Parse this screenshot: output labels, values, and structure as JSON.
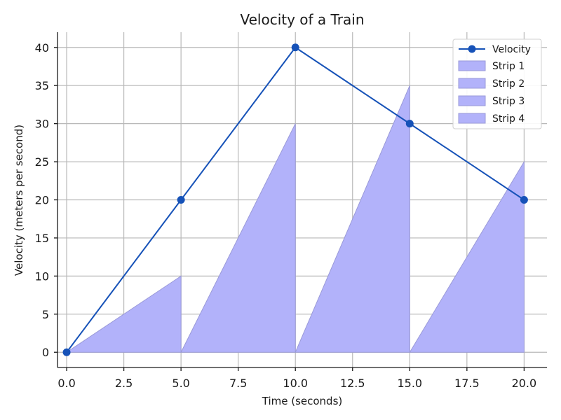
{
  "chart_data": {
    "type": "line",
    "title": "Velocity of a Train",
    "xlabel": "Time (seconds)",
    "ylabel": "Velocity (meters per second)",
    "xlim": [
      -0.4,
      21.0
    ],
    "ylim": [
      -2.0,
      42.0
    ],
    "xticks": [
      0.0,
      2.5,
      5.0,
      7.5,
      10.0,
      12.5,
      15.0,
      17.5,
      20.0
    ],
    "xtick_labels": [
      "0.0",
      "2.5",
      "5.0",
      "7.5",
      "10.0",
      "12.5",
      "15.0",
      "17.5",
      "20.0"
    ],
    "yticks": [
      0,
      5,
      10,
      15,
      20,
      25,
      30,
      35,
      40
    ],
    "ytick_labels": [
      "0",
      "5",
      "10",
      "15",
      "20",
      "25",
      "30",
      "35",
      "40"
    ],
    "grid": true,
    "legend_position": "top-right",
    "series": [
      {
        "name": "Velocity",
        "kind": "line-markers",
        "color": "#1652b8",
        "x": [
          0,
          5,
          10,
          15,
          20
        ],
        "y": [
          0,
          20,
          40,
          30,
          20
        ]
      }
    ],
    "strips": [
      {
        "name": "Strip 1",
        "x": [
          0,
          5
        ],
        "y_end": 10
      },
      {
        "name": "Strip 2",
        "x": [
          5,
          10
        ],
        "y_end": 30
      },
      {
        "name": "Strip 3",
        "x": [
          10,
          15
        ],
        "y_end": 35
      },
      {
        "name": "Strip 4",
        "x": [
          15,
          20
        ],
        "y_end": 25
      }
    ],
    "strip_fill": "#b2b2fa",
    "strip_edge": "#9a9ad8"
  }
}
